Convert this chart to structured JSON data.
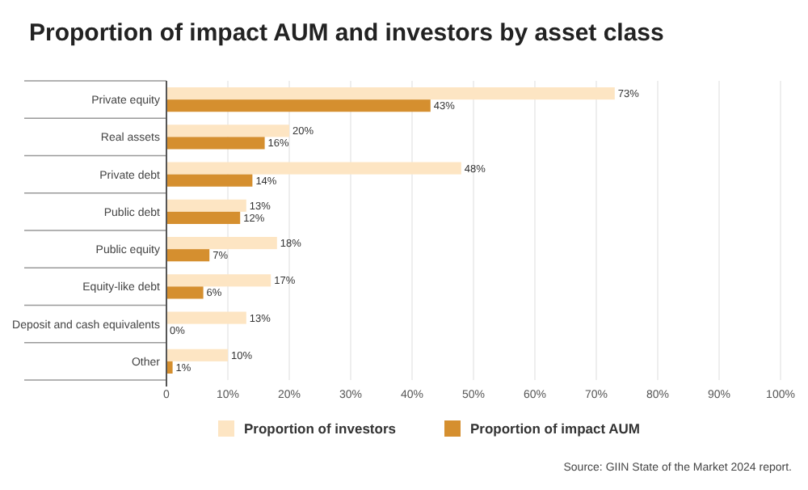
{
  "chart_data": {
    "type": "bar",
    "orientation": "horizontal",
    "title": "Proportion of impact AUM and investors by asset class",
    "categories": [
      "Private equity",
      "Real assets",
      "Private debt",
      "Public debt",
      "Public equity",
      "Equity-like debt",
      "Deposit and cash equivalents",
      "Other"
    ],
    "series": [
      {
        "name": "Proportion of investors",
        "color": "#fde5c3",
        "values": [
          73,
          20,
          48,
          13,
          18,
          17,
          13,
          10
        ],
        "value_labels": [
          "73%",
          "20%",
          "48%",
          "13%",
          "18%",
          "17%",
          "13%",
          "10%"
        ]
      },
      {
        "name": "Proportion of impact AUM",
        "color": "#d58f2f",
        "values": [
          43,
          16,
          14,
          12,
          7,
          6,
          0,
          1
        ],
        "value_labels": [
          "43%",
          "16%",
          "14%",
          "12%",
          "7%",
          "6%",
          "0%",
          "1%"
        ]
      }
    ],
    "xlim": [
      0,
      100
    ],
    "xticks": [
      {
        "value": 0,
        "label": "0"
      },
      {
        "value": 10,
        "label": "10%"
      },
      {
        "value": 20,
        "label": "20%"
      },
      {
        "value": 30,
        "label": "30%"
      },
      {
        "value": 40,
        "label": "40%"
      },
      {
        "value": 50,
        "label": "50%"
      },
      {
        "value": 60,
        "label": "60%"
      },
      {
        "value": 70,
        "label": "70%"
      },
      {
        "value": 80,
        "label": "80%"
      },
      {
        "value": 90,
        "label": "90%"
      },
      {
        "value": 100,
        "label": "100%"
      }
    ],
    "grid": "x",
    "legend": "bottom",
    "annotations": [
      "Source: GIIN State of the Market 2024 report."
    ]
  }
}
